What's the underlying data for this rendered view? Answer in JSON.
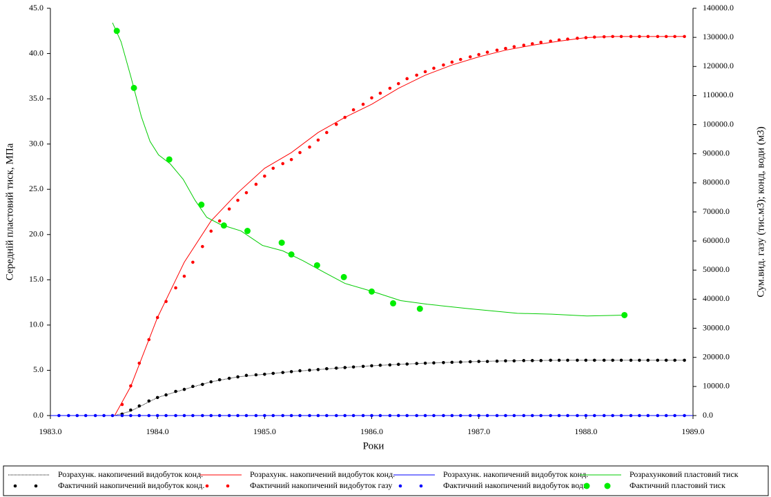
{
  "chart_data": {
    "type": "line",
    "x_label": "Роки",
    "y_label": "Середній пластовий тиск, МПа",
    "y2_label": "Сум.вид. газу (тис.м3); конд, води (м3)",
    "xlim": [
      1983,
      1989
    ],
    "xticks": [
      {
        "value": 1983,
        "label": "1983.0"
      },
      {
        "value": 1984,
        "label": "1984.0"
      },
      {
        "value": 1985,
        "label": "1985.0"
      },
      {
        "value": 1986,
        "label": "1986.0"
      },
      {
        "value": 1987,
        "label": "1987.0"
      },
      {
        "value": 1988,
        "label": "1988.0"
      },
      {
        "value": 1989,
        "label": "1989.0"
      }
    ],
    "ylim": [
      0,
      45
    ],
    "yticks": [
      {
        "value": 0,
        "label": "0.0"
      },
      {
        "value": 5,
        "label": "5.0"
      },
      {
        "value": 10,
        "label": "10.0"
      },
      {
        "value": 15,
        "label": "15.0"
      },
      {
        "value": 20,
        "label": "20.0"
      },
      {
        "value": 25,
        "label": "25.0"
      },
      {
        "value": 30,
        "label": "30.0"
      },
      {
        "value": 35,
        "label": "35.0"
      },
      {
        "value": 40,
        "label": "40.0"
      },
      {
        "value": 45,
        "label": "45.0"
      }
    ],
    "y2lim": [
      0,
      140000
    ],
    "y2ticks": [
      {
        "value": 0,
        "label": "0.0"
      },
      {
        "value": 10000,
        "label": "10000.0"
      },
      {
        "value": 20000,
        "label": "20000.0"
      },
      {
        "value": 30000,
        "label": "30000.0"
      },
      {
        "value": 40000,
        "label": "40000.0"
      },
      {
        "value": 50000,
        "label": "50000.0"
      },
      {
        "value": 60000,
        "label": "60000.0"
      },
      {
        "value": 70000,
        "label": "70000.0"
      },
      {
        "value": 80000,
        "label": "80000.0"
      },
      {
        "value": 90000,
        "label": "90000.0"
      },
      {
        "value": 100000,
        "label": "100000.0"
      },
      {
        "value": 110000,
        "label": "110000.0"
      },
      {
        "value": 120000,
        "label": "120000.0"
      },
      {
        "value": 130000,
        "label": "130000.0"
      },
      {
        "value": 140000,
        "label": "140000.0"
      }
    ],
    "grid": false,
    "legend": "bottom",
    "x": [
      1983.08,
      1983.17,
      1983.25,
      1983.33,
      1983.42,
      1983.5,
      1983.58,
      1983.67,
      1983.75,
      1983.83,
      1983.92,
      1984,
      1984.08,
      1984.17,
      1984.25,
      1984.33,
      1984.42,
      1984.5,
      1984.58,
      1984.67,
      1984.75,
      1984.83,
      1984.92,
      1985,
      1985.08,
      1985.17,
      1985.25,
      1985.33,
      1985.42,
      1985.5,
      1985.58,
      1985.67,
      1985.75,
      1985.83,
      1985.92,
      1986,
      1986.08,
      1986.17,
      1986.25,
      1986.33,
      1986.42,
      1986.5,
      1986.58,
      1986.67,
      1986.75,
      1986.83,
      1986.92,
      1987,
      1987.08,
      1987.17,
      1987.25,
      1987.33,
      1987.42,
      1987.5,
      1987.58,
      1987.67,
      1987.75,
      1987.83,
      1987.92,
      1988,
      1988.08,
      1988.17,
      1988.25,
      1988.33,
      1988.42,
      1988.5,
      1988.58,
      1988.67,
      1988.75,
      1988.83,
      1988.92
    ],
    "series": [
      {
        "name": "Розрахунк. накопичений видобуток конд.",
        "color": "#000000",
        "mark": "line",
        "dash": true,
        "axis": "y2",
        "x": [
          1983.6,
          1983.75,
          1984,
          1984.25,
          1984.5,
          1984.75,
          1985,
          1985.25,
          1985.5,
          1985.75,
          1986,
          1986.25,
          1986.5,
          1986.75,
          1987,
          1987.25,
          1987.5,
          1987.75,
          1988,
          1988.92
        ],
        "values": [
          0,
          1500,
          6200,
          9000,
          11600,
          13300,
          14200,
          15100,
          15800,
          16500,
          17100,
          17600,
          18000,
          18300,
          18600,
          18800,
          18900,
          19000,
          19000,
          19000
        ]
      },
      {
        "name": "Розрахунк. накопичений видобуток конд.",
        "color": "#ff0000",
        "mark": "line",
        "axis": "y2",
        "x": [
          1983.6,
          1983.75,
          1984,
          1984.25,
          1984.5,
          1984.75,
          1985,
          1985.25,
          1985.5,
          1985.75,
          1986,
          1986.25,
          1986.5,
          1986.75,
          1987,
          1987.25,
          1987.5,
          1987.75,
          1988,
          1988.25,
          1988.5,
          1988.92
        ],
        "values": [
          0,
          10000,
          33700,
          52700,
          66900,
          76600,
          85000,
          90400,
          97300,
          102500,
          107000,
          112500,
          117000,
          120500,
          123300,
          125600,
          127300,
          128700,
          129900,
          130300,
          130300,
          130300
        ]
      },
      {
        "name": "Розрахунк. накопичений видобуток конд.",
        "color": "#0000ff",
        "mark": "line",
        "axis": "y2",
        "x": [
          1983,
          1989
        ],
        "values": [
          0,
          0
        ]
      },
      {
        "name": "Розрахунковий пластовий тиск",
        "color": "#00cc00",
        "mark": "line",
        "x": [
          1983.58,
          1983.66,
          1983.75,
          1983.85,
          1983.93,
          1984.01,
          1984.12,
          1984.24,
          1984.35,
          1984.46,
          1984.59,
          1984.78,
          1984.98,
          1985.17,
          1985.36,
          1985.56,
          1985.75,
          1986.01,
          1986.27,
          1986.52,
          1986.91,
          1987.36,
          1987.68,
          1988.01,
          1988.36
        ],
        "values": [
          43.4,
          41.3,
          37.5,
          33.0,
          30.3,
          28.8,
          27.8,
          26.1,
          23.8,
          21.9,
          21.1,
          20.4,
          18.8,
          18.2,
          17.1,
          15.8,
          14.6,
          13.7,
          12.7,
          12.3,
          11.8,
          11.3,
          11.2,
          11.0,
          11.1
        ]
      },
      {
        "name": "Фактичний накопичений видобуток конд.",
        "color": "#000000",
        "mark": "marker",
        "axis": "y2",
        "values": [
          null,
          null,
          null,
          null,
          null,
          null,
          null,
          500,
          1900,
          3300,
          5000,
          6200,
          7100,
          8300,
          9000,
          10000,
          10700,
          11600,
          12300,
          12800,
          13300,
          13800,
          14000,
          14200,
          14500,
          14800,
          15100,
          15400,
          15600,
          15800,
          16100,
          16300,
          16500,
          16700,
          16900,
          17100,
          17300,
          17400,
          17600,
          17700,
          17900,
          18000,
          18100,
          18200,
          18300,
          18400,
          18500,
          18600,
          18600,
          18700,
          18800,
          18800,
          18900,
          18900,
          18900,
          19000,
          19000,
          19000,
          19000,
          19000,
          19000,
          19000,
          19000,
          19000,
          19000,
          19000,
          19000,
          19000,
          19000,
          19000,
          19000
        ]
      },
      {
        "name": "Фактичний накопичений видобуток газу",
        "color": "#ff0000",
        "mark": "marker",
        "axis": "y2",
        "values": [
          null,
          null,
          null,
          null,
          null,
          null,
          null,
          3800,
          10200,
          18000,
          26100,
          33700,
          39200,
          43900,
          47900,
          52700,
          58100,
          63400,
          66900,
          71000,
          74000,
          76600,
          79500,
          82300,
          85000,
          86600,
          88000,
          90400,
          92300,
          94700,
          97300,
          100100,
          102500,
          105100,
          107000,
          109200,
          110800,
          112500,
          114100,
          115800,
          117000,
          118200,
          119400,
          120500,
          121500,
          122400,
          123300,
          124100,
          124900,
          125600,
          126200,
          126800,
          127300,
          127800,
          128300,
          128700,
          129100,
          129400,
          129700,
          129900,
          130100,
          130200,
          130300,
          130300,
          130300,
          130300,
          130300,
          130300,
          130300,
          130300,
          130300
        ]
      },
      {
        "name": "Фактичний накопичений видобуток води",
        "color": "#0000ff",
        "mark": "marker",
        "axis": "y2",
        "values": [
          0,
          0,
          0,
          0,
          0,
          0,
          0,
          0,
          0,
          0,
          0,
          0,
          0,
          0,
          0,
          0,
          0,
          0,
          0,
          0,
          0,
          0,
          0,
          0,
          0,
          0,
          0,
          0,
          0,
          0,
          0,
          0,
          0,
          0,
          0,
          0,
          0,
          0,
          0,
          0,
          0,
          0,
          0,
          0,
          0,
          0,
          0,
          0,
          0,
          0,
          0,
          0,
          0,
          0,
          0,
          0,
          0,
          0,
          0,
          0,
          0,
          0,
          0,
          0,
          0,
          0,
          0,
          0,
          0,
          0,
          0
        ]
      },
      {
        "name": "Фактичний пластовий тиск",
        "color": "#00ee00",
        "mark": "marker",
        "big": true,
        "x": [
          1983.62,
          1983.78,
          1984.11,
          1984.41,
          1984.62,
          1984.84,
          1985.16,
          1985.25,
          1985.49,
          1985.74,
          1986.0,
          1986.2,
          1986.45,
          1988.36
        ],
        "values": [
          42.5,
          36.2,
          28.3,
          23.3,
          21.0,
          20.4,
          19.1,
          17.8,
          16.6,
          15.3,
          13.7,
          12.4,
          11.8,
          11.1
        ]
      }
    ]
  }
}
